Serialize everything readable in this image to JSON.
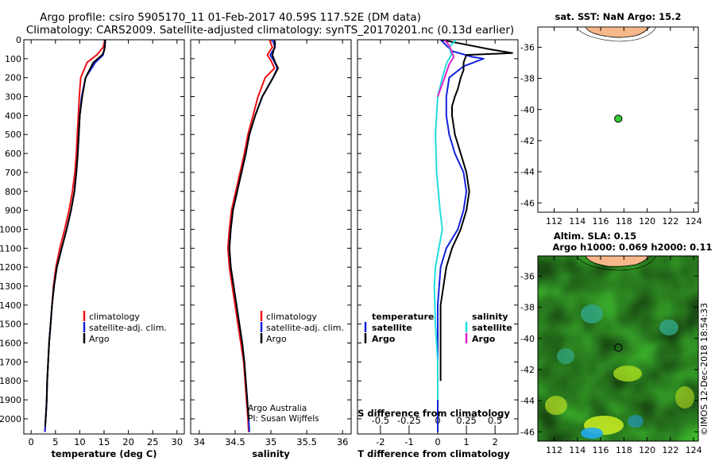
{
  "header": {
    "title_line1": "Argo profile: csiro 5905170_11 01-Feb-2017 40.59S 117.52E (DM data)",
    "title_line2": "Climatology: CARS2009. Satellite-adjusted climatology: synTS_20170201.nc (0.13d earlier)"
  },
  "colors": {
    "climatology": "#ee1111",
    "satellite": "#1122dd",
    "argo": "#000000",
    "sat_salinity": "#22dddd",
    "argo_salinity": "#dd22cc",
    "land": "#f6b88a"
  },
  "depth_axis": {
    "ticks": [
      "0",
      "100",
      "200",
      "300",
      "400",
      "500",
      "600",
      "700",
      "800",
      "900",
      "1000",
      "1100",
      "1200",
      "1300",
      "1400",
      "1500",
      "1600",
      "1700",
      "1800",
      "1900",
      "2000"
    ]
  },
  "temp_panel": {
    "xlabel": "temperature (deg C)",
    "xticks": [
      "0",
      "5",
      "10",
      "15",
      "20",
      "25",
      "30"
    ],
    "legend": [
      "climatology",
      "satellite-adj. clim.",
      "Argo"
    ]
  },
  "sal_panel": {
    "xlabel": "salinity",
    "xticks": [
      "34",
      "34.5",
      "35",
      "35.5",
      "36"
    ],
    "legend": [
      "climatology",
      "satellite-adj. clim.",
      "Argo"
    ],
    "credit1": "Argo Australia",
    "credit2": "PI: Susan Wijffels"
  },
  "diff_panel": {
    "xlabel": "T difference from climatology",
    "xticks": [
      "-2",
      "-1",
      "0",
      "1",
      "2"
    ],
    "s_label": "S difference from climatology",
    "s_ticks": [
      "-0.5",
      "-0.25",
      "0",
      "0.25",
      "0.5"
    ],
    "legend_t_title": "temperature",
    "legend_s_title": "salinity",
    "legend_t": [
      "satellite",
      "Argo"
    ],
    "legend_s": [
      "satellite",
      "Argo"
    ]
  },
  "map1": {
    "title": "sat. SST: NaN Argo: 15.2",
    "yticks": [
      "-36",
      "-38",
      "-40",
      "-42",
      "-44",
      "-46"
    ],
    "xticks": [
      "112",
      "114",
      "116",
      "118",
      "120",
      "122",
      "124"
    ]
  },
  "map2": {
    "title1": "Altim. SLA: 0.15",
    "title2": "Argo h1000: 0.069 h2000: 0.11",
    "yticks": [
      "-36",
      "-38",
      "-40",
      "-42",
      "-44",
      "-46"
    ],
    "xticks": [
      "112",
      "114",
      "116",
      "118",
      "120",
      "122",
      "124"
    ]
  },
  "footer": {
    "credit": "©IMOS 12-Dec-2018 18:54:33"
  },
  "chart_data": [
    {
      "type": "line",
      "title": "temperature",
      "xlabel": "temperature (deg C)",
      "ylabel": "depth",
      "xlim": [
        -1.5,
        31.5
      ],
      "ylim": [
        2080,
        0
      ],
      "series": [
        {
          "name": "climatology",
          "color": "#ee1111",
          "x": [
            15.2,
            14.8,
            13.5,
            11.5,
            10.2,
            9.9,
            9.7,
            9.5,
            9.3,
            9.0,
            8.5,
            7.8,
            6.9,
            5.9,
            5.1,
            4.6,
            4.3,
            4.0,
            3.7,
            3.5,
            3.3,
            3.2,
            3.1,
            3.0,
            2.9,
            2.85
          ],
          "depth": [
            0,
            40,
            80,
            120,
            200,
            300,
            400,
            500,
            600,
            700,
            800,
            900,
            1000,
            1100,
            1200,
            1300,
            1400,
            1500,
            1600,
            1700,
            1800,
            1900,
            1950,
            2000,
            2040,
            2070
          ]
        },
        {
          "name": "satellite-adj. clim.",
          "color": "#1122dd",
          "x": [
            15.3,
            15.1,
            14.8,
            13.2,
            11.2,
            10.4,
            10.0,
            9.8,
            9.6,
            9.3,
            8.9,
            8.2,
            7.3,
            6.3,
            5.3,
            4.7,
            4.3,
            4.0,
            3.7,
            3.5,
            3.3,
            3.2,
            3.1,
            3.0,
            2.9,
            2.85
          ],
          "depth": [
            0,
            40,
            80,
            120,
            200,
            300,
            400,
            500,
            600,
            700,
            800,
            900,
            1000,
            1100,
            1200,
            1300,
            1400,
            1500,
            1600,
            1700,
            1800,
            1900,
            1950,
            2000,
            2040,
            2070
          ]
        },
        {
          "name": "Argo",
          "color": "#000000",
          "x": [
            15.2,
            15.2,
            15.0,
            14.6,
            12.8,
            11.2,
            10.5,
            10.0,
            9.8,
            9.6,
            9.3,
            8.9,
            8.2,
            7.3,
            6.3,
            5.3,
            4.7,
            4.3,
            4.0,
            3.7,
            3.5,
            3.3,
            3.2,
            3.1,
            3.0,
            2.9
          ],
          "depth": [
            0,
            30,
            60,
            80,
            120,
            200,
            300,
            400,
            500,
            600,
            700,
            800,
            900,
            1000,
            1100,
            1200,
            1300,
            1400,
            1500,
            1600,
            1700,
            1800,
            1900,
            1950,
            2000,
            2040
          ]
        }
      ]
    },
    {
      "type": "line",
      "title": "salinity",
      "xlabel": "salinity",
      "ylabel": "depth",
      "xlim": [
        33.88,
        36.12
      ],
      "ylim": [
        2080,
        0
      ],
      "series": [
        {
          "name": "climatology",
          "color": "#ee1111",
          "x": [
            34.98,
            35.02,
            34.95,
            35.0,
            35.05,
            34.92,
            34.82,
            34.75,
            34.68,
            34.63,
            34.57,
            34.51,
            34.45,
            34.42,
            34.4,
            34.42,
            34.46,
            34.5,
            34.54,
            34.58,
            34.62,
            34.64,
            34.66,
            34.68,
            34.69
          ],
          "depth": [
            0,
            40,
            80,
            110,
            150,
            200,
            300,
            400,
            500,
            600,
            700,
            800,
            900,
            1000,
            1100,
            1200,
            1300,
            1400,
            1500,
            1600,
            1700,
            1800,
            1900,
            2000,
            2070
          ]
        },
        {
          "name": "satellite-adj. clim.",
          "color": "#1122dd",
          "x": [
            35.02,
            35.06,
            34.99,
            35.04,
            35.09,
            35.03,
            34.88,
            34.78,
            34.7,
            34.65,
            34.59,
            34.53,
            34.47,
            34.44,
            34.42,
            34.44,
            34.48,
            34.52,
            34.56,
            34.6,
            34.63,
            34.65,
            34.67,
            34.69,
            34.7
          ],
          "depth": [
            0,
            40,
            80,
            110,
            150,
            200,
            300,
            400,
            500,
            600,
            700,
            800,
            900,
            1000,
            1100,
            1200,
            1300,
            1400,
            1500,
            1600,
            1700,
            1800,
            1900,
            2000,
            2070
          ]
        },
        {
          "name": "Argo",
          "color": "#000000",
          "x": [
            35.05,
            35.06,
            35.05,
            35.02,
            35.06,
            35.1,
            35.03,
            34.88,
            34.78,
            34.7,
            34.65,
            34.59,
            34.53,
            34.47,
            34.44,
            34.42,
            34.44,
            34.48,
            34.52,
            34.56,
            34.6,
            34.63,
            34.65,
            34.67,
            34.69
          ],
          "depth": [
            0,
            20,
            40,
            80,
            120,
            150,
            200,
            300,
            400,
            500,
            600,
            700,
            800,
            900,
            1000,
            1100,
            1200,
            1300,
            1400,
            1500,
            1600,
            1700,
            1800,
            1900,
            2000
          ]
        }
      ]
    },
    {
      "type": "line",
      "title": "difference from climatology",
      "xlabel": "T difference from climatology",
      "ylabel": "depth",
      "xlim": [
        -2.8,
        2.8
      ],
      "ylim": [
        2080,
        0
      ],
      "secondary_x": {
        "label": "S difference from climatology",
        "xlim": [
          -0.7,
          0.7
        ]
      },
      "series": [
        {
          "name": "temperature satellite",
          "color": "#1122dd",
          "x": [
            0.1,
            0.3,
            0.5,
            1.2,
            1.6,
            0.9,
            0.4,
            0.3,
            0.3,
            0.4,
            0.6,
            0.9,
            1.0,
            0.9,
            0.7,
            0.3,
            0.1,
            0.0,
            0.0,
            0.0,
            0.0,
            0.0
          ],
          "depth": [
            0,
            30,
            60,
            90,
            100,
            140,
            200,
            300,
            400,
            500,
            600,
            700,
            800,
            900,
            1000,
            1100,
            1200,
            1400,
            1600,
            1800,
            2000,
            2070
          ]
        },
        {
          "name": "temperature Argo",
          "color": "#000000",
          "x": [
            0.1,
            0.8,
            1.8,
            2.6,
            1.0,
            0.9,
            0.9,
            0.8,
            0.7,
            0.6,
            0.5,
            0.5,
            0.6,
            0.8,
            1.0,
            1.1,
            1.0,
            0.8,
            0.5,
            0.3,
            0.2,
            0.1,
            0.1,
            0.1
          ],
          "depth": [
            0,
            20,
            50,
            70,
            80,
            120,
            160,
            200,
            260,
            300,
            350,
            400,
            500,
            600,
            700,
            800,
            900,
            1000,
            1100,
            1200,
            1300,
            1400,
            1600,
            1800
          ]
        },
        {
          "name": "salinity satellite",
          "color": "#22dddd",
          "x": [
            0.16,
            0.1,
            0.12,
            0.08,
            0.04,
            0.0,
            -0.02,
            -0.01,
            0.02,
            0.04,
            0.01,
            -0.02,
            -0.03,
            -0.02,
            0.0,
            0.0
          ],
          "depth": [
            0,
            40,
            80,
            120,
            200,
            300,
            500,
            700,
            900,
            1000,
            1100,
            1200,
            1300,
            1500,
            1700,
            1900
          ]
        },
        {
          "name": "salinity Argo",
          "color": "#dd22cc",
          "x": [
            0.06,
            0.1,
            0.12,
            0.14,
            0.1,
            0.06,
            0.0
          ],
          "depth": [
            0,
            30,
            60,
            90,
            130,
            200,
            300
          ]
        }
      ]
    },
    {
      "type": "scatter",
      "title": "sat. SST: NaN Argo: 15.2",
      "x": [
        117.52
      ],
      "y": [
        -40.59
      ],
      "xlim": [
        110.6,
        124.4
      ],
      "ylim": [
        -46.6,
        -34.7
      ]
    },
    {
      "type": "heatmap",
      "title": "Altim. SLA: 0.15 / Argo h1000: 0.069 h2000: 0.11",
      "x": [
        117.52
      ],
      "y": [
        -40.59
      ],
      "xlim": [
        110.6,
        124.4
      ],
      "ylim": [
        -46.6,
        -34.7
      ]
    }
  ]
}
